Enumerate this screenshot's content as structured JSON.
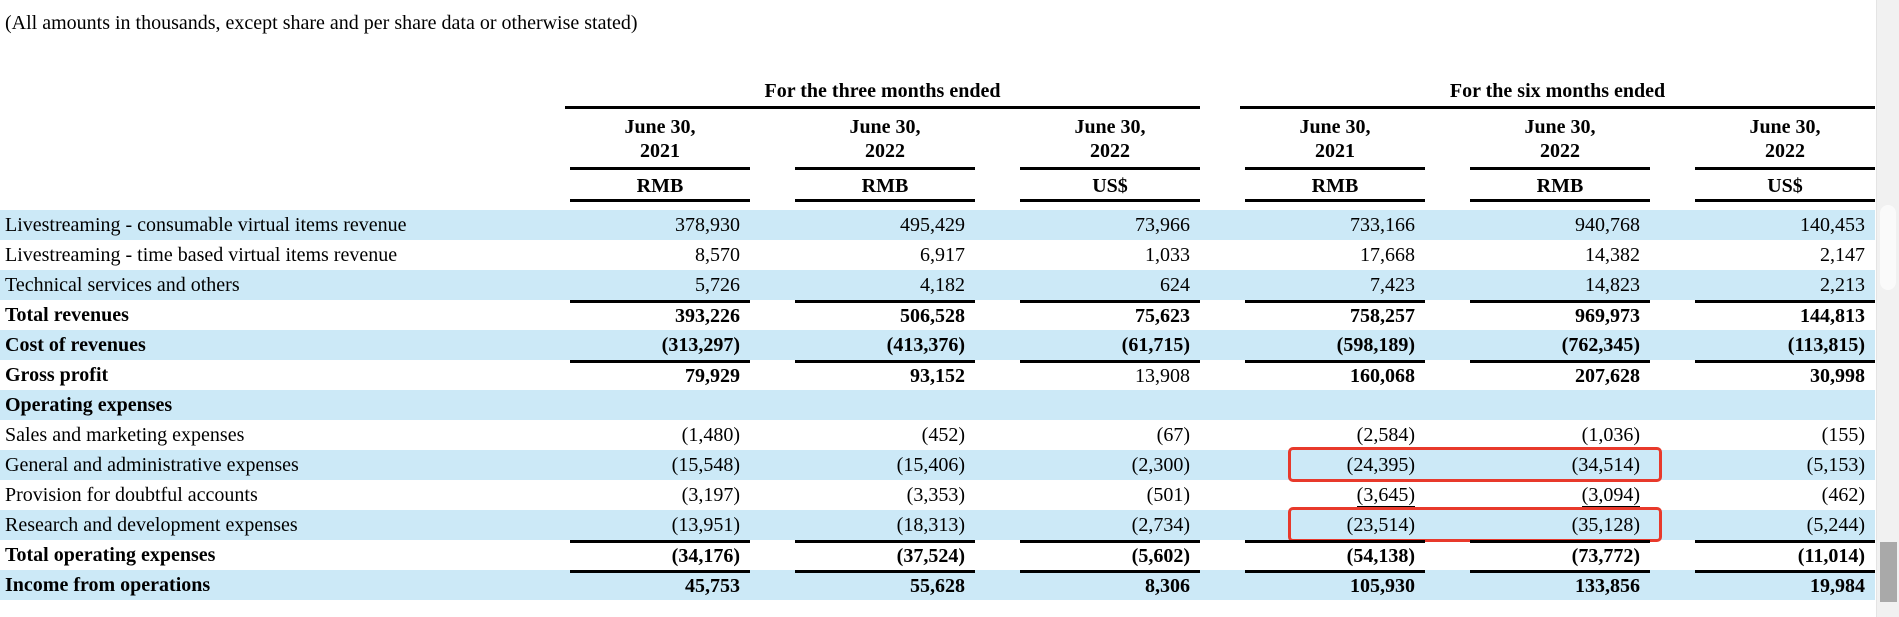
{
  "note": "(All amounts in thousands, except share and per share data or otherwise stated)",
  "colors": {
    "row_highlight": "#cce9f7",
    "annotation_red": "#e8392b",
    "text": "#000000",
    "scrollbar_track": "#f1f1f1",
    "scrollbar_thumb": "#a9a9a9"
  },
  "table": {
    "groups": [
      {
        "title": "For the three months ended",
        "columns": [
          {
            "date": "June 30,",
            "year": "2021",
            "currency": "RMB"
          },
          {
            "date": "June 30,",
            "year": "2022",
            "currency": "RMB"
          },
          {
            "date": "June 30,",
            "year": "2022",
            "currency": "US$"
          }
        ]
      },
      {
        "title": "For the six months ended",
        "columns": [
          {
            "date": "June 30,",
            "year": "2021",
            "currency": "RMB"
          },
          {
            "date": "June 30,",
            "year": "2022",
            "currency": "RMB"
          },
          {
            "date": "June 30,",
            "year": "2022",
            "currency": "US$"
          }
        ]
      }
    ],
    "rows": [
      {
        "label": "Livestreaming - consumable virtual items revenue",
        "values": [
          "378,930",
          "495,429",
          "73,966",
          "733,166",
          "940,768",
          "140,453"
        ]
      },
      {
        "label": "Livestreaming - time based virtual items revenue",
        "values": [
          "8,570",
          "6,917",
          "1,033",
          "17,668",
          "14,382",
          "2,147"
        ]
      },
      {
        "label": "Technical services and others",
        "values": [
          "5,726",
          "4,182",
          "624",
          "7,423",
          "14,823",
          "2,213"
        ]
      },
      {
        "label": "Total revenues",
        "bold": true,
        "top_border": true,
        "values": [
          "393,226",
          "506,528",
          "75,623",
          "758,257",
          "969,973",
          "144,813"
        ]
      },
      {
        "label": "Cost of revenues",
        "bold": true,
        "values": [
          "(313,297)",
          "(413,376)",
          "(61,715)",
          "(598,189)",
          "(762,345)",
          "(113,815)"
        ]
      },
      {
        "label": "Gross profit",
        "bold": true,
        "top_border": true,
        "regular_cells": [
          2
        ],
        "values": [
          "79,929",
          "93,152",
          "13,908",
          "160,068",
          "207,628",
          "30,998"
        ]
      },
      {
        "label": "Operating expenses",
        "bold": true,
        "section": true,
        "values": [
          "",
          "",
          "",
          "",
          "",
          ""
        ]
      },
      {
        "label": "Sales and marketing expenses",
        "values": [
          "(1,480)",
          "(452)",
          "(67)",
          "(2,584)",
          "(1,036)",
          "(155)"
        ]
      },
      {
        "label": "General and administrative expenses",
        "highlight_cols": [
          3,
          4
        ],
        "values": [
          "(15,548)",
          "(15,406)",
          "(2,300)",
          "(24,395)",
          "(34,514)",
          "(5,153)"
        ]
      },
      {
        "label": "Provision for doubtful accounts",
        "underline_cells": [
          3,
          4
        ],
        "values": [
          "(3,197)",
          "(3,353)",
          "(501)",
          "(3,645)",
          "(3,094)",
          "(462)"
        ]
      },
      {
        "label": "Research and development expenses",
        "highlight_cols": [
          3,
          4
        ],
        "values": [
          "(13,951)",
          "(18,313)",
          "(2,734)",
          "(23,514)",
          "(35,128)",
          "(5,244)"
        ]
      },
      {
        "label": "Total operating expenses",
        "bold": true,
        "top_border": true,
        "values": [
          "(34,176)",
          "(37,524)",
          "(5,602)",
          "(54,138)",
          "(73,772)",
          "(11,014)"
        ]
      },
      {
        "label": "Income from operations",
        "bold": true,
        "top_border": true,
        "values": [
          "45,753",
          "55,628",
          "8,306",
          "105,930",
          "133,856",
          "19,984"
        ]
      }
    ]
  },
  "scrollbar": {
    "orientation": "vertical",
    "thumb_position": "near-bottom"
  }
}
